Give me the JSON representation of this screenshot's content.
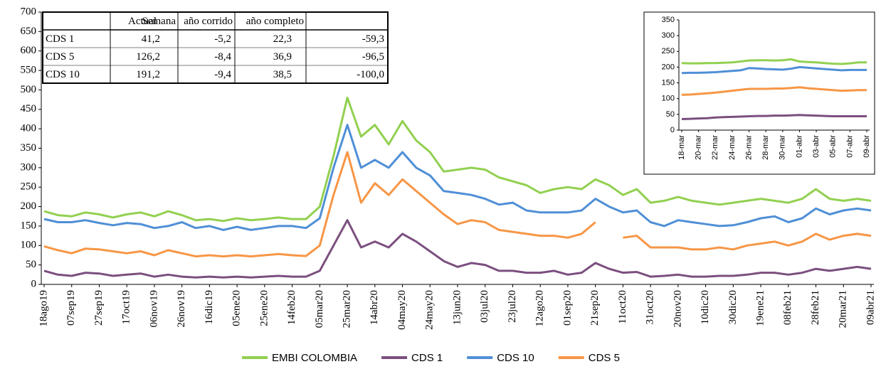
{
  "chart_data": [
    {
      "type": "line",
      "categories": [
        "18ago19",
        null,
        "07sep19",
        null,
        "27sep19",
        null,
        "17oct19",
        null,
        "06nov19",
        null,
        "26nov19",
        null,
        "16dic19",
        null,
        "05ene20",
        null,
        "25ene20",
        null,
        "14feb20",
        null,
        "05mar20",
        null,
        "25mar20",
        null,
        "14abr20",
        null,
        "04may20",
        null,
        "24may20",
        null,
        "13jun20",
        null,
        "03jul20",
        null,
        "23jul20",
        null,
        "12ago20",
        null,
        "01sep20",
        null,
        "21sep20",
        null,
        "11oct20",
        null,
        "31oct20",
        null,
        "20nov20",
        null,
        "10dic20",
        null,
        "30dic20",
        null,
        "19ene21",
        null,
        "08feb21",
        null,
        "28feb21",
        null,
        "20mar21",
        null,
        "09abr21"
      ],
      "series": [
        {
          "name": "EMBI COLOMBIA",
          "color": "#92d050",
          "values": [
            188,
            178,
            175,
            185,
            180,
            172,
            180,
            185,
            175,
            188,
            178,
            165,
            168,
            163,
            170,
            165,
            168,
            172,
            168,
            168,
            200,
            330,
            480,
            380,
            410,
            360,
            420,
            370,
            340,
            290,
            295,
            300,
            295,
            275,
            265,
            255,
            235,
            245,
            250,
            245,
            270,
            255,
            230,
            245,
            210,
            215,
            225,
            215,
            210,
            205,
            210,
            215,
            220,
            215,
            210,
            220,
            245,
            220,
            215,
            220,
            215
          ]
        },
        {
          "name": "CDS 1",
          "color": "#7b4f7f",
          "values": [
            35,
            25,
            22,
            30,
            28,
            22,
            25,
            28,
            20,
            25,
            20,
            18,
            20,
            18,
            20,
            18,
            20,
            22,
            20,
            20,
            35,
            100,
            165,
            95,
            110,
            95,
            130,
            110,
            85,
            60,
            45,
            55,
            50,
            35,
            35,
            30,
            30,
            35,
            25,
            30,
            55,
            40,
            30,
            32,
            20,
            22,
            25,
            20,
            20,
            22,
            22,
            25,
            30,
            30,
            25,
            30,
            40,
            35,
            40,
            45,
            40
          ]
        },
        {
          "name": "CDS 10",
          "color": "#4f8fd6",
          "values": [
            168,
            160,
            160,
            165,
            158,
            152,
            158,
            155,
            145,
            150,
            160,
            145,
            150,
            140,
            148,
            140,
            145,
            150,
            150,
            145,
            170,
            300,
            410,
            300,
            320,
            300,
            340,
            300,
            280,
            240,
            235,
            230,
            220,
            205,
            210,
            190,
            185,
            185,
            185,
            190,
            220,
            200,
            185,
            190,
            160,
            150,
            165,
            160,
            155,
            150,
            152,
            160,
            170,
            175,
            160,
            170,
            195,
            180,
            190,
            195,
            190
          ]
        },
        {
          "name": "CDS 5",
          "color": "#f79646",
          "values": [
            98,
            88,
            80,
            92,
            90,
            85,
            80,
            85,
            75,
            88,
            80,
            72,
            75,
            72,
            75,
            72,
            75,
            78,
            75,
            73,
            100,
            230,
            340,
            210,
            260,
            230,
            270,
            240,
            210,
            180,
            155,
            165,
            160,
            140,
            135,
            130,
            125,
            125,
            120,
            130,
            160,
            null,
            120,
            125,
            95,
            95,
            95,
            90,
            90,
            95,
            90,
            100,
            105,
            110,
            100,
            110,
            130,
            115,
            125,
            130,
            125
          ]
        }
      ],
      "ylim": [
        0,
        700
      ],
      "yticks": [
        0,
        50,
        100,
        150,
        200,
        250,
        300,
        350,
        400,
        450,
        500,
        550,
        600,
        650,
        700
      ]
    },
    {
      "type": "line",
      "categories": [
        "18-mar",
        null,
        "20-mar",
        null,
        "22-mar",
        null,
        "24-mar",
        null,
        "26-mar",
        null,
        "28-mar",
        null,
        "30-mar",
        null,
        "01-abr",
        null,
        "03-abr",
        null,
        "05-abr",
        null,
        "07-abr",
        null,
        "09-abr"
      ],
      "series": [
        {
          "name": "EMBI COLOMBIA",
          "color": "#92d050",
          "values": [
            213,
            212,
            212,
            213,
            213,
            214,
            215,
            218,
            221,
            222,
            222,
            221,
            222,
            225,
            218,
            216,
            215,
            213,
            211,
            210,
            212,
            215,
            215
          ]
        },
        {
          "name": "CDS 1",
          "color": "#7b4f7f",
          "values": [
            35,
            36,
            37,
            38,
            40,
            41,
            42,
            43,
            44,
            45,
            45,
            46,
            46,
            47,
            48,
            47,
            46,
            45,
            44,
            44,
            44,
            44,
            44
          ]
        },
        {
          "name": "CDS 10",
          "color": "#4f8fd6",
          "values": [
            181,
            182,
            182,
            183,
            184,
            186,
            188,
            190,
            197,
            196,
            194,
            193,
            192,
            195,
            200,
            198,
            196,
            194,
            192,
            190,
            191,
            191,
            191
          ]
        },
        {
          "name": "CDS 5",
          "color": "#f79646",
          "values": [
            112,
            113,
            115,
            117,
            119,
            122,
            125,
            128,
            131,
            131,
            131,
            132,
            132,
            134,
            136,
            133,
            131,
            129,
            127,
            125,
            126,
            127,
            127
          ]
        }
      ],
      "ylim": [
        0,
        350
      ],
      "yticks": [
        0,
        50,
        100,
        150,
        200,
        250,
        300,
        350
      ]
    }
  ],
  "table": {
    "columns": [
      "Actual",
      "Semana",
      "año corrido",
      "año completo"
    ],
    "rows": [
      [
        "CDS 1",
        "41,2",
        "-5,2",
        "22,3",
        "-59,3"
      ],
      [
        "CDS 5",
        "126,2",
        "-8,4",
        "36,9",
        "-96,5"
      ],
      [
        "CDS 10",
        "191,2",
        "-9,4",
        "38,5",
        "-100,0"
      ]
    ]
  }
}
